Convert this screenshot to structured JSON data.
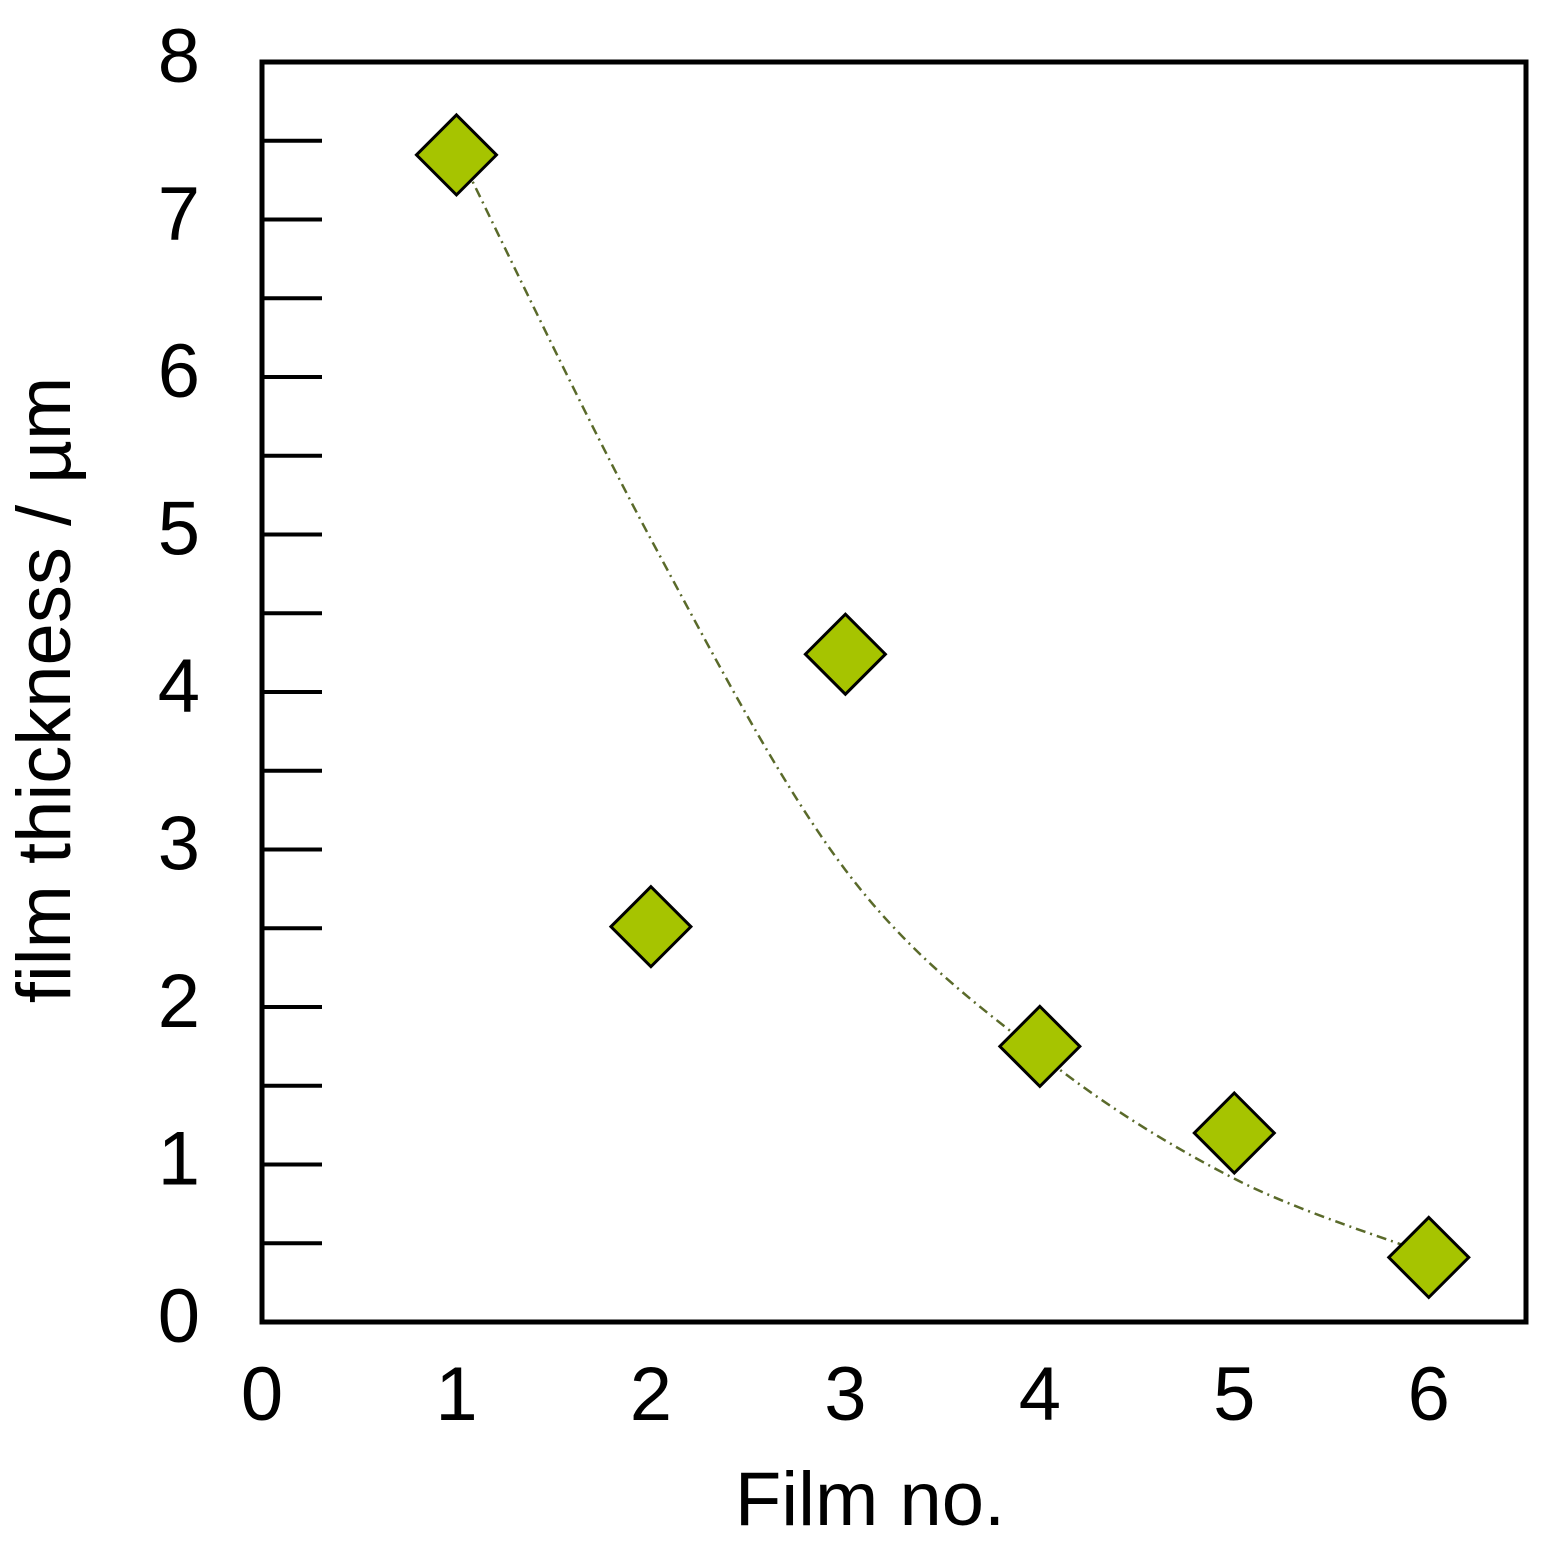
{
  "chart_data": {
    "type": "scatter",
    "xlabel": "Film no.",
    "ylabel": "film thickness / µm",
    "xlim": [
      0,
      6.5
    ],
    "xticks": [
      0,
      1,
      2,
      3,
      4,
      5,
      6
    ],
    "ylim": [
      0,
      8
    ],
    "yticks": [
      0,
      1,
      2,
      3,
      4,
      5,
      6,
      7,
      8
    ],
    "yticks_minor": [
      0.5,
      1.5,
      2.5,
      3.5,
      4.5,
      5.5,
      6.5,
      7.5
    ],
    "series": [
      {
        "color": "#a6c400",
        "marker": "diamond",
        "x": [
          1,
          2,
          3,
          4,
          5,
          6
        ],
        "values": [
          7.41,
          2.51,
          4.24,
          1.75,
          1.2,
          0.41
        ]
      }
    ],
    "trend": {
      "color": "#5a6a2a",
      "style": "dash-dot",
      "x": [
        1,
        2,
        3,
        4,
        5,
        6
      ],
      "values": [
        7.45,
        4.97,
        2.87,
        1.7,
        0.91,
        0.43
      ]
    }
  }
}
